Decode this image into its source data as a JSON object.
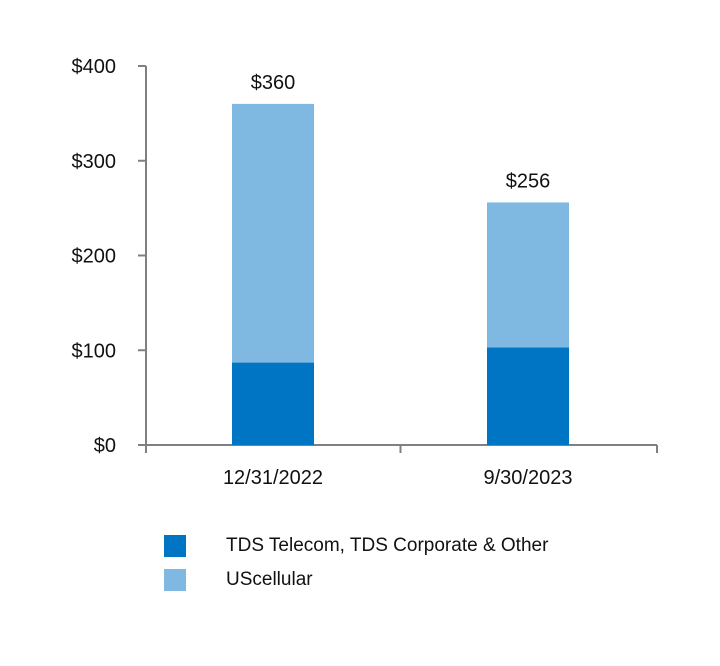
{
  "chart_data": {
    "type": "bar",
    "stacked": true,
    "categories": [
      "12/31/2022",
      "9/30/2023"
    ],
    "series": [
      {
        "name": "TDS Telecom, TDS Corporate & Other",
        "values": [
          87,
          103
        ],
        "color": "#0075C4"
      },
      {
        "name": "UScellular",
        "values": [
          273,
          153
        ],
        "color": "#7FB8E1"
      }
    ],
    "totals": [
      "$360",
      "$256"
    ],
    "ylim": [
      0,
      400
    ],
    "yticks": [
      0,
      100,
      200,
      300,
      400
    ],
    "ytick_labels": [
      "$0",
      "$100",
      "$200",
      "$300",
      "$400"
    ],
    "title": "",
    "xlabel": "",
    "ylabel": "",
    "legend_position": "bottom",
    "grid": false
  }
}
